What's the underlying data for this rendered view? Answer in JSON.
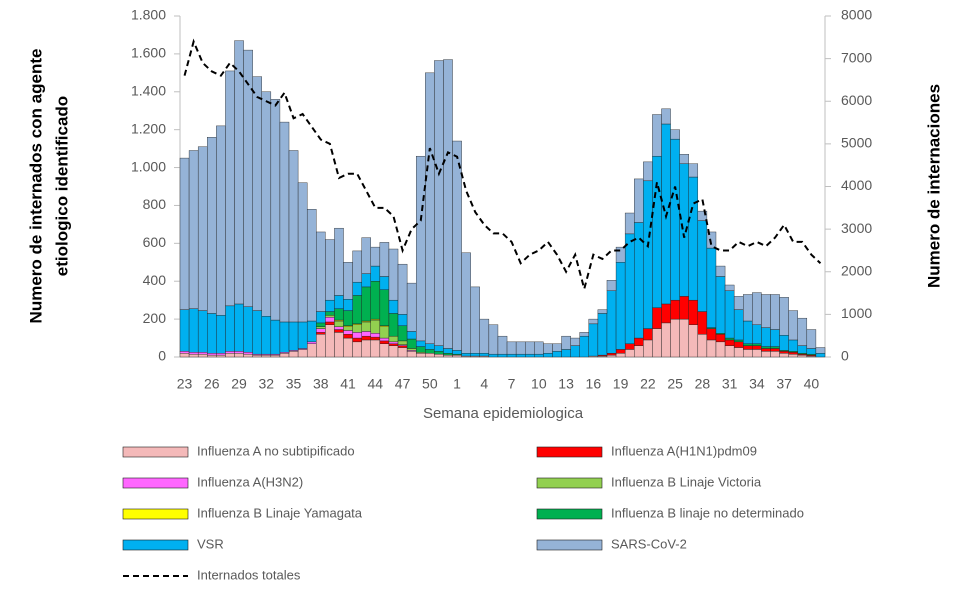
{
  "chart_data": {
    "type": "bar",
    "stacked": true,
    "ylabel": [
      "Numero de internados con agente",
      "etiologico identificado"
    ],
    "y2label": "Numero de internaciones",
    "xlabel": "Semana epidemiologica",
    "categories": [
      "23",
      null,
      null,
      "26",
      null,
      null,
      "29",
      null,
      null,
      "32",
      null,
      null,
      "35",
      null,
      null,
      "38",
      null,
      null,
      "41",
      null,
      null,
      "44",
      null,
      null,
      "47",
      null,
      null,
      "50",
      null,
      null,
      "1",
      null,
      null,
      "4",
      null,
      null,
      "7",
      null,
      null,
      "10",
      null,
      null,
      "13",
      null,
      null,
      "16",
      null,
      null,
      "19",
      null,
      null,
      "22",
      null,
      null,
      "25",
      null,
      null,
      "28",
      null,
      null,
      "31",
      null,
      null,
      "34",
      null,
      null,
      "37",
      null,
      null,
      "40",
      null
    ],
    "ylim": [
      0,
      1800
    ],
    "yticks": [
      0,
      200,
      400,
      600,
      800,
      {
        "value": 1000,
        "label": "1.000"
      },
      {
        "value": 1200,
        "label": "1.200"
      },
      {
        "value": 1400,
        "label": "1.400"
      },
      {
        "value": 1600,
        "label": "1.600"
      },
      {
        "value": 1800,
        "label": "1.800"
      }
    ],
    "y2lim": [
      0,
      8000
    ],
    "y2ticks": [
      0,
      1000,
      2000,
      3000,
      4000,
      5000,
      6000,
      7000,
      8000
    ],
    "series": [
      {
        "name": "Influenza A no subtipificado",
        "color": "#f4b9b9",
        "values": [
          20,
          15,
          15,
          10,
          10,
          20,
          20,
          15,
          10,
          10,
          10,
          20,
          30,
          40,
          70,
          120,
          170,
          130,
          100,
          80,
          90,
          90,
          70,
          60,
          50,
          30,
          20,
          20,
          15,
          10,
          10,
          5,
          5,
          5,
          0,
          0,
          0,
          0,
          0,
          0,
          0,
          0,
          0,
          0,
          0,
          5,
          5,
          10,
          20,
          40,
          60,
          90,
          150,
          180,
          200,
          200,
          170,
          120,
          90,
          80,
          60,
          50,
          40,
          40,
          30,
          30,
          20,
          15,
          10,
          5,
          0
        ]
      },
      {
        "name": "Influenza A(H1N1)pdm09",
        "color": "#ff0000",
        "values": [
          0,
          0,
          0,
          0,
          0,
          0,
          0,
          0,
          0,
          0,
          0,
          0,
          0,
          0,
          0,
          10,
          15,
          15,
          20,
          20,
          20,
          15,
          15,
          10,
          10,
          0,
          0,
          0,
          0,
          0,
          0,
          0,
          0,
          0,
          0,
          0,
          0,
          0,
          0,
          0,
          0,
          0,
          0,
          0,
          0,
          0,
          5,
          10,
          20,
          30,
          40,
          60,
          110,
          100,
          100,
          120,
          130,
          120,
          60,
          40,
          30,
          30,
          20,
          20,
          15,
          15,
          10,
          10,
          5,
          5,
          0
        ]
      },
      {
        "name": "Influenza A(H3N2)",
        "color": "#ff66ff",
        "values": [
          10,
          10,
          10,
          10,
          10,
          10,
          10,
          10,
          5,
          5,
          5,
          5,
          5,
          5,
          10,
          20,
          25,
          15,
          20,
          30,
          25,
          20,
          15,
          10,
          5,
          5,
          0,
          0,
          0,
          0,
          0,
          0,
          0,
          0,
          0,
          0,
          0,
          0,
          0,
          0,
          0,
          0,
          0,
          0,
          0,
          0,
          0,
          0,
          0,
          0,
          0,
          0,
          0,
          0,
          0,
          0,
          0,
          0,
          0,
          0,
          0,
          0,
          0,
          0,
          0,
          0,
          0,
          0,
          0,
          0,
          0
        ]
      },
      {
        "name": "Influenza B Linaje Victoria",
        "color": "#92d050",
        "values": [
          0,
          0,
          0,
          0,
          0,
          0,
          0,
          0,
          0,
          0,
          0,
          0,
          0,
          0,
          0,
          10,
          10,
          30,
          20,
          40,
          50,
          70,
          60,
          30,
          20,
          10,
          5,
          0,
          0,
          0,
          0,
          0,
          0,
          0,
          0,
          0,
          0,
          0,
          0,
          0,
          0,
          0,
          0,
          0,
          0,
          0,
          0,
          0,
          0,
          0,
          0,
          0,
          0,
          0,
          0,
          0,
          0,
          0,
          0,
          0,
          0,
          0,
          0,
          0,
          0,
          0,
          0,
          0,
          0,
          0,
          0
        ]
      },
      {
        "name": "Influenza B Linaje Yamagata",
        "color": "#ffff00",
        "values": [
          0,
          0,
          0,
          0,
          0,
          0,
          0,
          0,
          0,
          0,
          0,
          0,
          0,
          0,
          0,
          0,
          0,
          5,
          5,
          5,
          5,
          5,
          5,
          0,
          0,
          0,
          0,
          0,
          0,
          0,
          0,
          0,
          0,
          0,
          0,
          0,
          0,
          0,
          0,
          0,
          0,
          0,
          0,
          0,
          0,
          0,
          0,
          0,
          0,
          0,
          0,
          0,
          0,
          0,
          0,
          0,
          0,
          0,
          0,
          0,
          0,
          0,
          0,
          0,
          0,
          0,
          0,
          0,
          0,
          0,
          0
        ]
      },
      {
        "name": "Influenza B linaje no determinado",
        "color": "#00b050",
        "values": [
          0,
          0,
          0,
          0,
          0,
          0,
          0,
          0,
          0,
          0,
          0,
          0,
          0,
          0,
          0,
          20,
          20,
          60,
          80,
          150,
          180,
          200,
          190,
          120,
          80,
          50,
          30,
          20,
          15,
          10,
          5,
          0,
          0,
          0,
          0,
          0,
          0,
          0,
          0,
          0,
          0,
          0,
          0,
          0,
          0,
          0,
          0,
          0,
          0,
          0,
          0,
          0,
          0,
          0,
          0,
          0,
          0,
          0,
          5,
          5,
          10,
          10,
          10,
          10,
          10,
          10,
          5,
          5,
          5,
          5,
          0
        ]
      },
      {
        "name": "VSR",
        "color": "#00b0f0",
        "values": [
          220,
          230,
          220,
          210,
          200,
          240,
          250,
          240,
          230,
          200,
          180,
          160,
          150,
          140,
          110,
          60,
          60,
          70,
          60,
          70,
          70,
          80,
          70,
          70,
          60,
          40,
          30,
          30,
          30,
          25,
          20,
          15,
          15,
          15,
          15,
          15,
          15,
          15,
          15,
          15,
          20,
          30,
          40,
          60,
          110,
          170,
          220,
          330,
          460,
          580,
          610,
          780,
          800,
          950,
          850,
          700,
          650,
          480,
          420,
          300,
          250,
          160,
          120,
          100,
          100,
          90,
          80,
          60,
          40,
          30,
          20
        ]
      },
      {
        "name": "SARS-CoV-2",
        "color": "#95b3d7",
        "values": [
          800,
          835,
          865,
          930,
          1000,
          1240,
          1390,
          1355,
          1235,
          1185,
          1165,
          1055,
          905,
          735,
          590,
          420,
          320,
          355,
          195,
          165,
          190,
          100,
          180,
          270,
          265,
          255,
          975,
          1430,
          1505,
          1525,
          1105,
          530,
          350,
          180,
          155,
          95,
          65,
          65,
          65,
          65,
          50,
          40,
          70,
          40,
          20,
          25,
          20,
          55,
          80,
          110,
          230,
          100,
          220,
          80,
          50,
          50,
          70,
          50,
          85,
          55,
          30,
          70,
          140,
          170,
          175,
          185,
          200,
          155,
          145,
          100,
          30
        ]
      },
      {
        "name": "Internados totales",
        "color": "#000000",
        "type": "line",
        "linestyle": "dashed",
        "axis": "y2",
        "values": [
          6600,
          7400,
          6900,
          6700,
          6600,
          6900,
          6700,
          6400,
          6100,
          6000,
          5900,
          6200,
          5600,
          5700,
          5400,
          5100,
          5000,
          4200,
          4300,
          4300,
          3900,
          3500,
          3500,
          3300,
          2500,
          3000,
          3200,
          4900,
          4300,
          4800,
          4700,
          3900,
          3400,
          3100,
          2900,
          2900,
          2700,
          2200,
          2400,
          2500,
          2700,
          2400,
          2000,
          2400,
          1600,
          2400,
          2300,
          2500,
          2500,
          2700,
          2800,
          2600,
          4100,
          3300,
          4000,
          2800,
          3600,
          3700,
          2600,
          2500,
          2500,
          2700,
          2600,
          2700,
          2600,
          2800,
          3100,
          2700,
          2700,
          2400,
          2200
        ]
      }
    ]
  }
}
